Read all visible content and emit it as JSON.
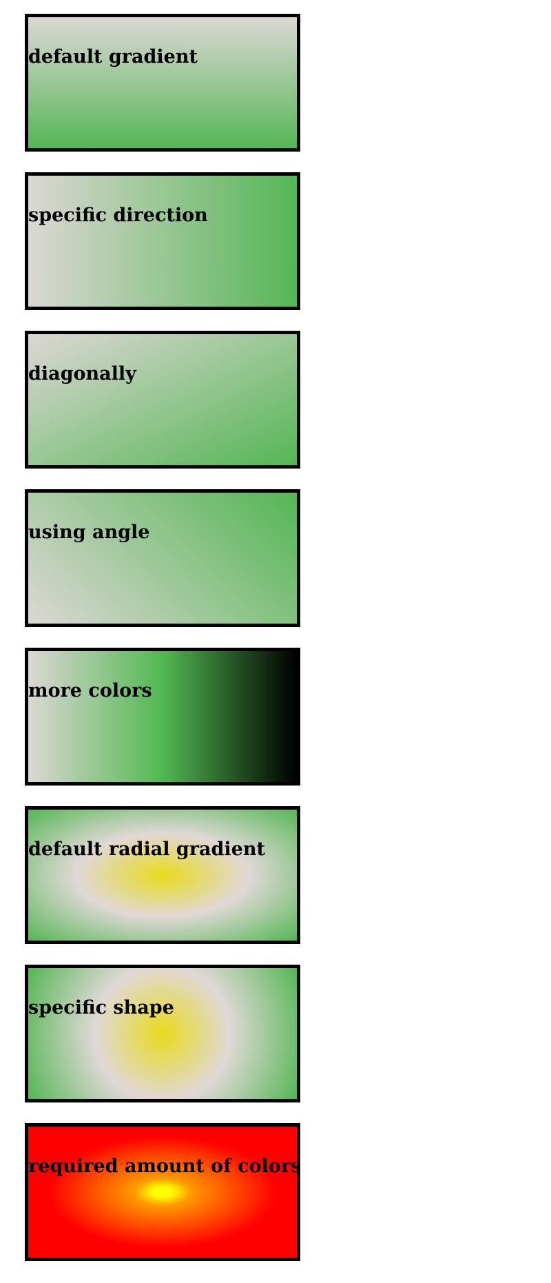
{
  "boxes": [
    {
      "label": "default gradient"
    },
    {
      "label": "specific direction"
    },
    {
      "label": "diagonally"
    },
    {
      "label": "using angle"
    },
    {
      "label": "more colors"
    },
    {
      "label": "default radial gradient"
    },
    {
      "label": "specific shape"
    },
    {
      "label": "required amount of colors"
    }
  ],
  "colors": {
    "light": "#dcd7d4",
    "green": "#55b655",
    "black": "#000000",
    "yellow_green_center": "#e8db1c",
    "yellow": "#ffff00",
    "orange": "#ff9900",
    "red": "#ff0000",
    "border": "#000000"
  }
}
